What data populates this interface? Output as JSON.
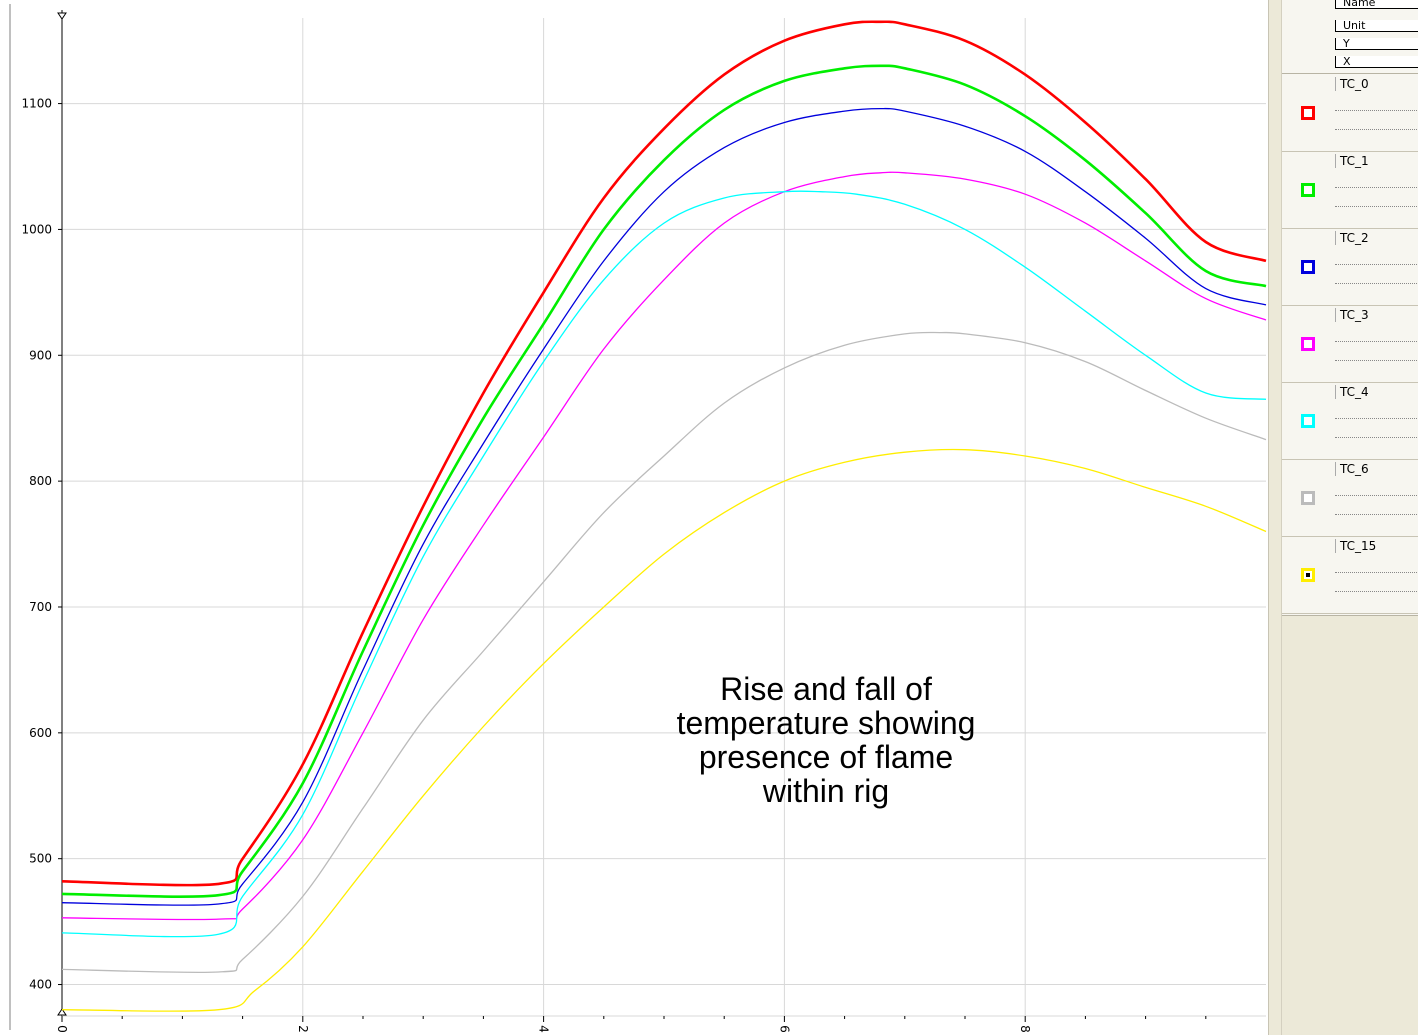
{
  "chart_data": {
    "type": "line",
    "title": "",
    "xlabel": "",
    "ylabel": "",
    "xlim": [
      0,
      10
    ],
    "ylim": [
      375,
      1168
    ],
    "x_ticks": [
      0,
      2,
      4,
      6,
      8
    ],
    "y_ticks": [
      400,
      500,
      600,
      700,
      800,
      900,
      1000,
      1100
    ],
    "grid": true,
    "legend_position": "right-panel",
    "annotation": "Rise and fall of\ntemperature showing\npresence of flame\nwithin rig",
    "series": [
      {
        "name": "TC_0",
        "color": "#ff0000",
        "width": 2.6,
        "points": [
          [
            0,
            482
          ],
          [
            1.3,
            480
          ],
          [
            1.5,
            500
          ],
          [
            2,
            575
          ],
          [
            2.5,
            680
          ],
          [
            3,
            780
          ],
          [
            3.5,
            870
          ],
          [
            4,
            950
          ],
          [
            4.5,
            1025
          ],
          [
            5,
            1080
          ],
          [
            5.5,
            1123
          ],
          [
            6,
            1150
          ],
          [
            6.5,
            1163
          ],
          [
            6.8,
            1165
          ],
          [
            7,
            1163
          ],
          [
            7.5,
            1150
          ],
          [
            8,
            1123
          ],
          [
            8.5,
            1085
          ],
          [
            9,
            1040
          ],
          [
            9.5,
            990
          ],
          [
            10,
            975
          ]
        ]
      },
      {
        "name": "TC_1",
        "color": "#00ee00",
        "width": 2.6,
        "points": [
          [
            0,
            472
          ],
          [
            1.3,
            471
          ],
          [
            1.5,
            490
          ],
          [
            2,
            560
          ],
          [
            2.5,
            665
          ],
          [
            3,
            765
          ],
          [
            3.5,
            850
          ],
          [
            4,
            925
          ],
          [
            4.5,
            1000
          ],
          [
            5,
            1055
          ],
          [
            5.5,
            1095
          ],
          [
            6,
            1118
          ],
          [
            6.5,
            1128
          ],
          [
            6.8,
            1130
          ],
          [
            7,
            1128
          ],
          [
            7.5,
            1115
          ],
          [
            8,
            1090
          ],
          [
            8.5,
            1055
          ],
          [
            9,
            1013
          ],
          [
            9.5,
            967
          ],
          [
            10,
            955
          ]
        ]
      },
      {
        "name": "TC_2",
        "color": "#0000dd",
        "width": 1.3,
        "points": [
          [
            0,
            465
          ],
          [
            1.3,
            464
          ],
          [
            1.5,
            480
          ],
          [
            2,
            545
          ],
          [
            2.5,
            650
          ],
          [
            3,
            750
          ],
          [
            3.5,
            830
          ],
          [
            4,
            905
          ],
          [
            4.5,
            975
          ],
          [
            5,
            1030
          ],
          [
            5.5,
            1065
          ],
          [
            6,
            1085
          ],
          [
            6.5,
            1094
          ],
          [
            6.8,
            1096
          ],
          [
            7,
            1094
          ],
          [
            7.5,
            1082
          ],
          [
            8,
            1062
          ],
          [
            8.5,
            1030
          ],
          [
            9,
            993
          ],
          [
            9.5,
            953
          ],
          [
            10,
            940
          ]
        ]
      },
      {
        "name": "TC_3",
        "color": "#ff00ff",
        "width": 1.3,
        "points": [
          [
            0,
            453
          ],
          [
            1.3,
            452
          ],
          [
            1.5,
            460
          ],
          [
            2,
            515
          ],
          [
            2.5,
            600
          ],
          [
            3,
            690
          ],
          [
            3.5,
            765
          ],
          [
            4,
            835
          ],
          [
            4.5,
            905
          ],
          [
            5,
            960
          ],
          [
            5.5,
            1005
          ],
          [
            6,
            1030
          ],
          [
            6.5,
            1042
          ],
          [
            6.8,
            1045
          ],
          [
            7,
            1045
          ],
          [
            7.5,
            1040
          ],
          [
            8,
            1028
          ],
          [
            8.5,
            1005
          ],
          [
            9,
            975
          ],
          [
            9.5,
            945
          ],
          [
            10,
            928
          ]
        ]
      },
      {
        "name": "TC_4",
        "color": "#00ffff",
        "width": 1.3,
        "points": [
          [
            0,
            441
          ],
          [
            1.3,
            440
          ],
          [
            1.5,
            470
          ],
          [
            2,
            535
          ],
          [
            2.5,
            640
          ],
          [
            3,
            740
          ],
          [
            3.5,
            820
          ],
          [
            4,
            895
          ],
          [
            4.5,
            960
          ],
          [
            5,
            1005
          ],
          [
            5.5,
            1025
          ],
          [
            6,
            1030
          ],
          [
            6.3,
            1030
          ],
          [
            6.6,
            1028
          ],
          [
            7,
            1020
          ],
          [
            7.5,
            1000
          ],
          [
            8,
            970
          ],
          [
            8.5,
            935
          ],
          [
            9,
            900
          ],
          [
            9.5,
            870
          ],
          [
            10,
            865
          ]
        ]
      },
      {
        "name": "TC_6",
        "color": "#bbbbbb",
        "width": 1.3,
        "points": [
          [
            0,
            412
          ],
          [
            1.3,
            410
          ],
          [
            1.5,
            420
          ],
          [
            2,
            470
          ],
          [
            2.5,
            540
          ],
          [
            3,
            610
          ],
          [
            3.5,
            665
          ],
          [
            4,
            720
          ],
          [
            4.5,
            775
          ],
          [
            5,
            820
          ],
          [
            5.5,
            862
          ],
          [
            6,
            890
          ],
          [
            6.5,
            908
          ],
          [
            7,
            917
          ],
          [
            7.3,
            918
          ],
          [
            7.5,
            917
          ],
          [
            8,
            910
          ],
          [
            8.5,
            895
          ],
          [
            9,
            872
          ],
          [
            9.5,
            850
          ],
          [
            10,
            833
          ]
        ]
      },
      {
        "name": "TC_15",
        "color": "#ffee00",
        "width": 1.3,
        "points": [
          [
            0,
            380
          ],
          [
            1.3,
            380
          ],
          [
            1.6,
            395
          ],
          [
            2,
            430
          ],
          [
            2.5,
            490
          ],
          [
            3,
            550
          ],
          [
            3.5,
            605
          ],
          [
            4,
            655
          ],
          [
            4.5,
            700
          ],
          [
            5,
            742
          ],
          [
            5.5,
            775
          ],
          [
            6,
            800
          ],
          [
            6.5,
            815
          ],
          [
            7,
            823
          ],
          [
            7.5,
            825
          ],
          [
            8,
            820
          ],
          [
            8.5,
            810
          ],
          [
            9,
            795
          ],
          [
            9.5,
            780
          ],
          [
            10,
            760
          ]
        ]
      }
    ]
  },
  "legend": {
    "headers": [
      "Name",
      "Unit",
      "Y",
      "X"
    ],
    "items": [
      {
        "label": "TC_0",
        "color": "#ff0000",
        "fill": "#ffffff"
      },
      {
        "label": "TC_1",
        "color": "#00ee00",
        "fill": "#ffffff"
      },
      {
        "label": "TC_2",
        "color": "#0000dd",
        "fill": "#ffffff"
      },
      {
        "label": "TC_3",
        "color": "#ff00ff",
        "fill": "#ffffff"
      },
      {
        "label": "TC_4",
        "color": "#00ffff",
        "fill": "#ffffff"
      },
      {
        "label": "TC_6",
        "color": "#bbbbbb",
        "fill": "#ffffff"
      },
      {
        "label": "TC_15",
        "color": "#ffee00",
        "fill": "#000000"
      }
    ]
  }
}
